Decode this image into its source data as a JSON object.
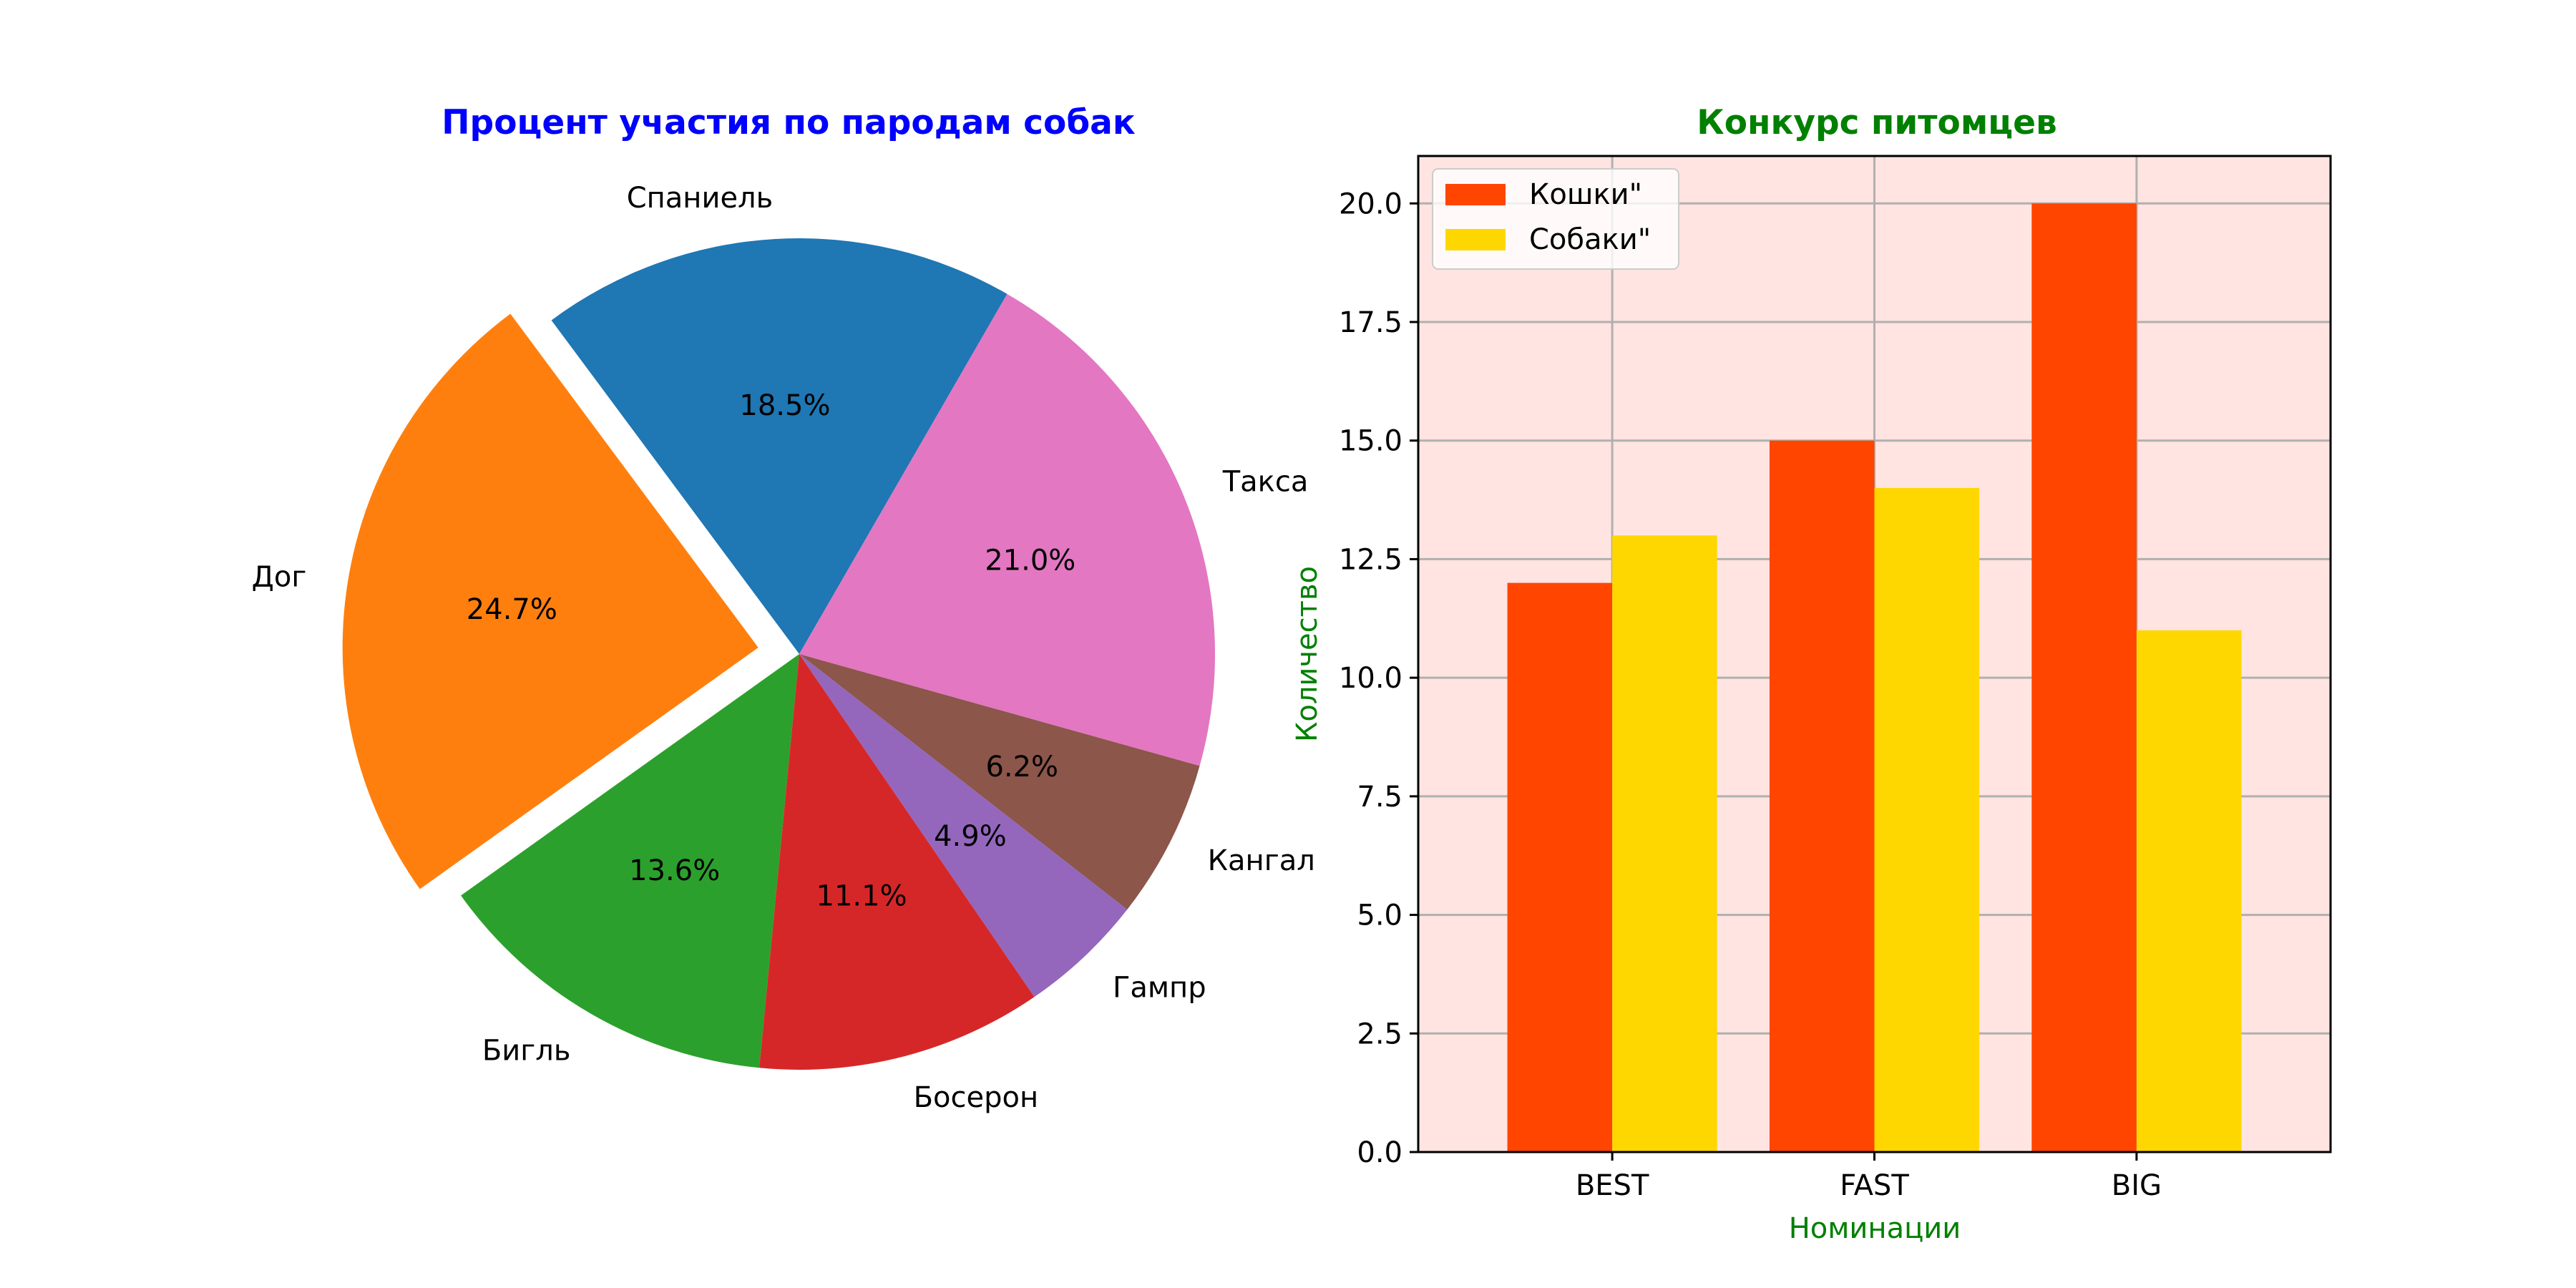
{
  "chart_data": [
    {
      "type": "pie",
      "title": "Процент участия по пародам собак",
      "title_color": "#0000ff",
      "labels": [
        "Спаниель",
        "Дог",
        "Бигль",
        "Босерон",
        "Гампр",
        "Кангал",
        "Такса"
      ],
      "values": [
        18.5,
        24.7,
        13.6,
        11.1,
        4.9,
        6.2,
        21.0
      ],
      "autopct": [
        "18.5%",
        "24.7%",
        "13.6%",
        "11.1%",
        "4.9%",
        "6.2%",
        "21.0%"
      ],
      "colors": [
        "#1f77b4",
        "#ff7f0e",
        "#2ca02c",
        "#d62728",
        "#9467bd",
        "#8c564b",
        "#e377c2"
      ],
      "exploded": "Дог",
      "start_direction": "counterclockwise from top-right"
    },
    {
      "type": "bar",
      "title": "Конкурс питомцев",
      "title_color": "#008000",
      "xlabel": "Номинации",
      "ylabel": "Количество",
      "label_color": "#008000",
      "categories": [
        "BEST",
        "FAST",
        "BIG"
      ],
      "series": [
        {
          "name": "Кошки\"",
          "values": [
            12,
            15,
            20
          ],
          "color": "#ff4500"
        },
        {
          "name": "Собаки\"",
          "values": [
            13,
            14,
            11
          ],
          "color": "#ffd700"
        }
      ],
      "ylim": [
        0,
        21
      ],
      "yticks": [
        "0.0",
        "2.5",
        "5.0",
        "7.5",
        "10.0",
        "12.5",
        "15.0",
        "17.5",
        "20.0"
      ],
      "ytick_values": [
        0,
        2.5,
        5,
        7.5,
        10,
        12.5,
        15,
        17.5,
        20
      ],
      "plot_background": "#ffe4e1",
      "grid": true,
      "legend_position": "upper left"
    }
  ]
}
